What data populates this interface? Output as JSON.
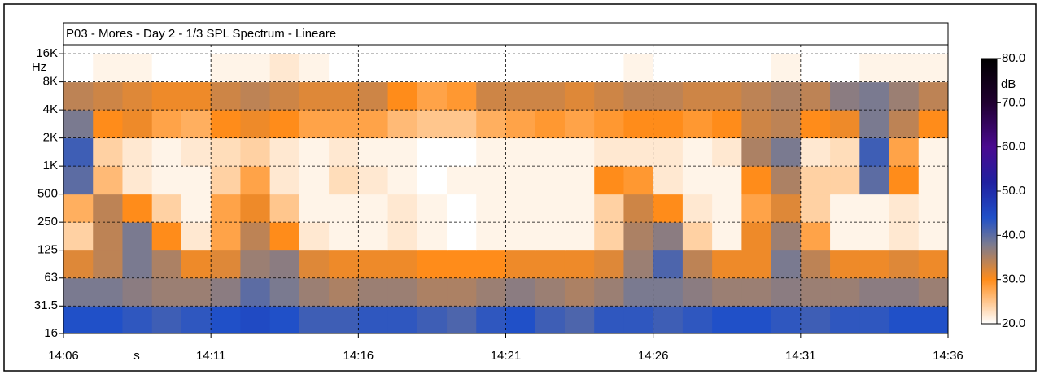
{
  "chart_data": {
    "type": "heatmap",
    "title": "P03 - Mores - Day 2 - 1/3 SPL Spectrum - Lineare",
    "x_label": "s",
    "y_label": "Hz",
    "colorbar_label": "dB",
    "x": [
      "14:06",
      "14:07",
      "14:08",
      "14:09",
      "14:10",
      "14:11",
      "14:12",
      "14:13",
      "14:14",
      "14:15",
      "14:16",
      "14:17",
      "14:18",
      "14:19",
      "14:20",
      "14:21",
      "14:22",
      "14:23",
      "14:24",
      "14:25",
      "14:26",
      "14:27",
      "14:28",
      "14:29",
      "14:30",
      "14:31",
      "14:32",
      "14:33",
      "14:34",
      "14:35"
    ],
    "xlim": [
      "14:06",
      "14:36"
    ],
    "xticks": [
      "14:06",
      "14:11",
      "14:16",
      "14:21",
      "14:26",
      "14:31",
      "14:36"
    ],
    "y_bins": [
      16,
      31.5,
      63,
      125,
      250,
      500,
      1000,
      2000,
      4000,
      8000,
      16000
    ],
    "ylim": [
      16,
      20000
    ],
    "y_scale": "log",
    "yticks": [
      {
        "value": 16,
        "label": "16"
      },
      {
        "value": 31.5,
        "label": "31.5"
      },
      {
        "value": 63,
        "label": "63"
      },
      {
        "value": 125,
        "label": "125"
      },
      {
        "value": 250,
        "label": "250"
      },
      {
        "value": 500,
        "label": "500"
      },
      {
        "value": 1000,
        "label": "1K"
      },
      {
        "value": 2000,
        "label": "2K"
      },
      {
        "value": 4000,
        "label": "4K"
      },
      {
        "value": 8000,
        "label": "8K"
      },
      {
        "value": 16000,
        "label": "16K"
      }
    ],
    "z": [
      [
        44,
        44,
        43,
        42,
        43,
        44,
        45,
        44,
        42,
        42,
        43,
        43,
        42,
        41,
        43,
        44,
        42,
        41,
        43,
        43,
        42,
        43,
        44,
        44,
        43,
        42,
        43,
        43,
        44,
        44
      ],
      [
        38,
        38,
        37,
        36,
        36,
        37,
        40,
        38,
        36,
        35,
        36,
        36,
        35,
        35,
        36,
        37,
        36,
        35,
        36,
        38,
        38,
        37,
        36,
        36,
        37,
        36,
        36,
        37,
        37,
        36
      ],
      [
        32,
        34,
        38,
        35,
        31,
        32,
        36,
        37,
        32,
        31,
        31,
        31,
        30,
        30,
        30,
        31,
        31,
        31,
        32,
        36,
        41,
        34,
        31,
        31,
        38,
        34,
        31,
        31,
        32,
        31
      ],
      [
        24,
        34,
        38,
        30,
        22,
        28,
        34,
        30,
        22,
        21,
        21,
        22,
        21,
        20,
        21,
        21,
        21,
        21,
        24,
        35,
        37,
        24,
        21,
        31,
        36,
        28,
        21,
        21,
        22,
        21
      ],
      [
        27,
        34,
        30,
        24,
        21,
        28,
        31,
        25,
        21,
        21,
        21,
        22,
        21,
        20,
        21,
        21,
        21,
        21,
        24,
        33,
        30,
        22,
        21,
        28,
        32,
        24,
        21,
        21,
        22,
        21
      ],
      [
        40,
        26,
        22,
        21,
        21,
        24,
        28,
        22,
        21,
        23,
        22,
        21,
        20,
        21,
        21,
        21,
        21,
        21,
        30,
        29,
        22,
        21,
        21,
        30,
        35,
        24,
        24,
        40,
        30,
        21
      ],
      [
        42,
        24,
        22,
        21,
        22,
        23,
        24,
        22,
        21,
        22,
        21,
        21,
        20,
        20,
        21,
        21,
        21,
        21,
        22,
        22,
        22,
        21,
        22,
        35,
        38,
        22,
        23,
        42,
        28,
        21
      ],
      [
        38,
        30,
        31,
        28,
        27,
        30,
        31,
        30,
        28,
        28,
        28,
        26,
        25,
        25,
        27,
        28,
        29,
        28,
        29,
        30,
        30,
        29,
        30,
        33,
        34,
        30,
        31,
        38,
        34,
        30
      ],
      [
        34,
        33,
        32,
        31,
        31,
        33,
        34,
        33,
        32,
        32,
        33,
        30,
        28,
        29,
        33,
        33,
        33,
        32,
        33,
        34,
        34,
        33,
        33,
        34,
        35,
        34,
        37,
        38,
        36,
        34
      ],
      [
        20,
        21,
        21,
        20,
        20,
        21,
        21,
        22,
        21,
        20,
        20,
        20,
        20,
        20,
        20,
        20,
        20,
        20,
        20,
        21,
        20,
        20,
        20,
        20,
        21,
        20,
        20,
        21,
        21,
        21
      ]
    ],
    "colorlim": [
      20,
      80
    ],
    "colorticks": [
      {
        "value": 20,
        "label": "20.0"
      },
      {
        "value": 30,
        "label": "30.0"
      },
      {
        "value": 40,
        "label": "40.0"
      },
      {
        "value": 50,
        "label": "50.0"
      },
      {
        "value": 60,
        "label": "60.0"
      },
      {
        "value": 70,
        "label": "70.0"
      },
      {
        "value": 80,
        "label": "80.0"
      }
    ],
    "colorscale": [
      [
        20,
        "#ffffff"
      ],
      [
        30,
        "#ff8c1a"
      ],
      [
        38,
        "#7a7a90"
      ],
      [
        44,
        "#2050c8"
      ],
      [
        52,
        "#2020a0"
      ],
      [
        60,
        "#4a0a90"
      ],
      [
        70,
        "#200030"
      ],
      [
        80,
        "#000000"
      ]
    ],
    "grid": true
  }
}
